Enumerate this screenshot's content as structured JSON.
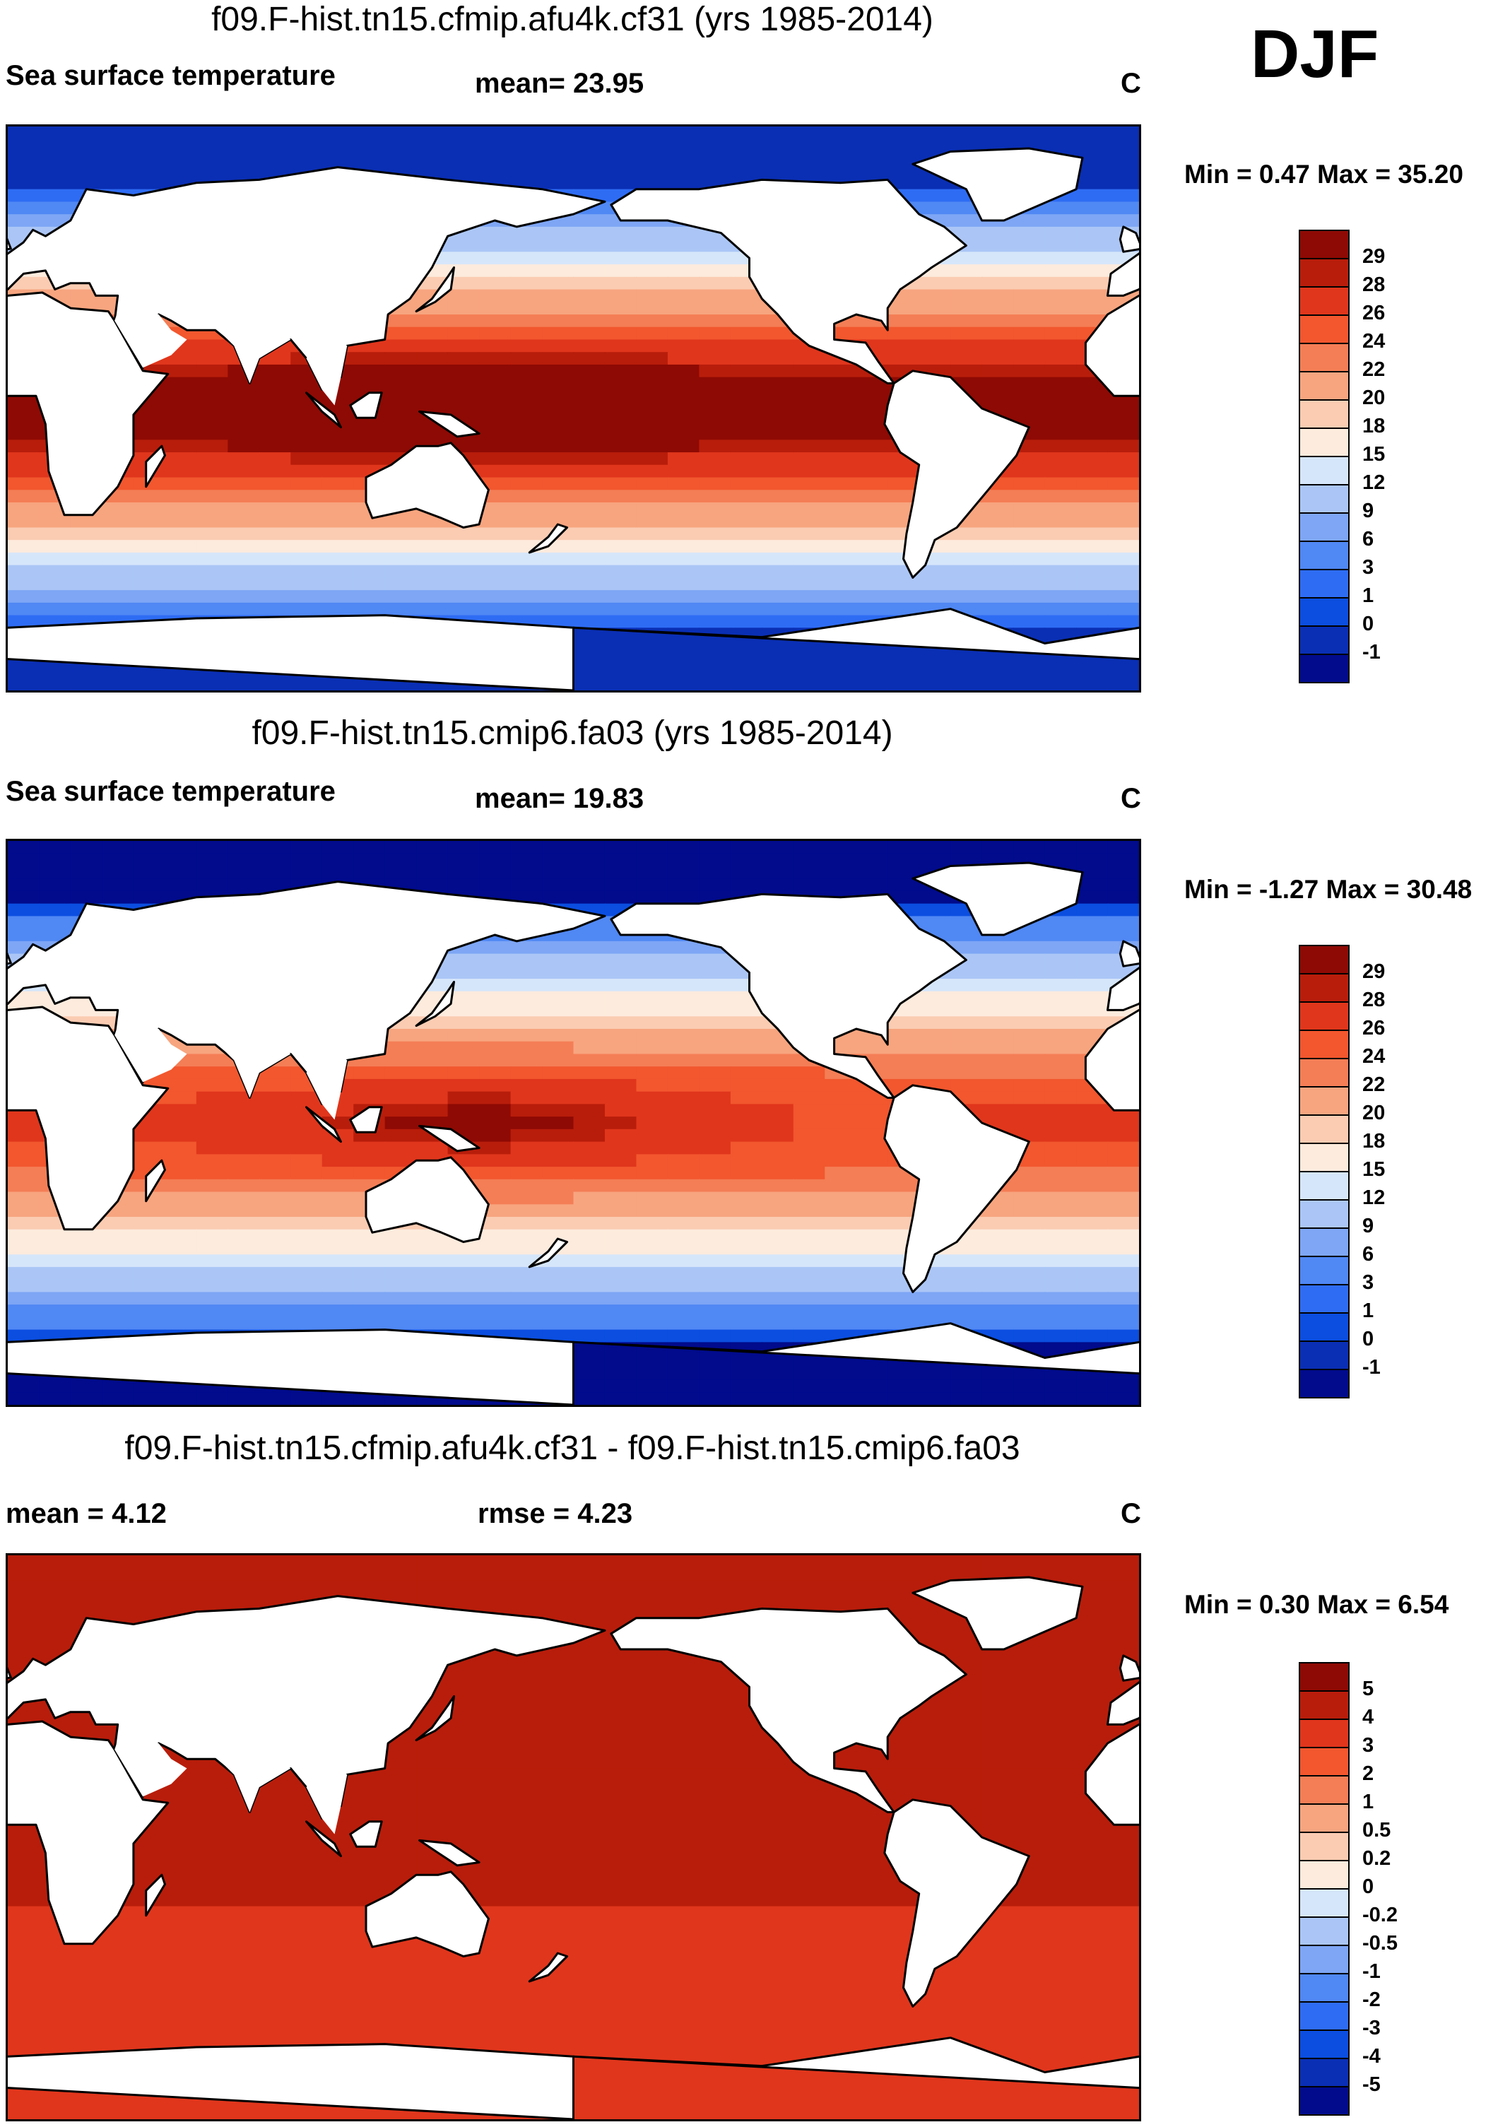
{
  "season": "DJF",
  "palettes": {
    "sst": [
      "#010b8c",
      "#0a2fb4",
      "#0b4ee0",
      "#2e6cf4",
      "#5088f4",
      "#7ea6f5",
      "#abc6f6",
      "#d6e6fa",
      "#fdebdd",
      "#fbccb2",
      "#f7a57f",
      "#f47e56",
      "#f2572e",
      "#e0361c",
      "#b81d0b",
      "#8e0a04"
    ],
    "diff": [
      "#010b8c",
      "#0a2fb4",
      "#0b4ee0",
      "#2e6cf4",
      "#5088f4",
      "#7ea6f5",
      "#abc6f6",
      "#d6e6fa",
      "#fdebdd",
      "#fbccb2",
      "#f7a57f",
      "#f47e56",
      "#f2572e",
      "#e0361c",
      "#b81d0b",
      "#8e0a04"
    ]
  },
  "panels": [
    {
      "title": "f09.F-hist.tn15.cfmip.afu4k.cf31 (yrs 1985-2014)",
      "left_label": "Sea surface temperature",
      "center_label": "mean=  23.95",
      "units": "C",
      "minmax": "Min =   0.47 Max =  35.20",
      "colorbar": {
        "palette": "sst",
        "ticks": [
          "29",
          "28",
          "26",
          "24",
          "22",
          "20",
          "18",
          "15",
          "12",
          "9",
          "6",
          "3",
          "1",
          "0",
          "-1"
        ]
      },
      "field": {
        "equator_value": 30.5,
        "north_pole_value": -1,
        "south_pole_value": -1,
        "west_pacific_boost": 2.0
      }
    },
    {
      "title": "f09.F-hist.tn15.cmip6.fa03 (yrs 1985-2014)",
      "left_label": "Sea surface temperature",
      "center_label": "mean=  19.83",
      "units": "C",
      "minmax": "Min =  -1.27 Max =  30.48",
      "colorbar": {
        "palette": "sst",
        "ticks": [
          "29",
          "28",
          "26",
          "24",
          "22",
          "20",
          "18",
          "15",
          "12",
          "9",
          "6",
          "3",
          "1",
          "0",
          "-1"
        ]
      },
      "field": {
        "equator_value": 26.5,
        "north_pole_value": -1.5,
        "south_pole_value": -1.5,
        "west_pacific_boost": 3.0
      }
    },
    {
      "title": "f09.F-hist.tn15.cfmip.afu4k.cf31 - f09.F-hist.tn15.cmip6.fa03",
      "left_label": "mean =    4.12",
      "center_label": "rmse =    4.23",
      "units": "C",
      "minmax": "Min =   0.30 Max =   6.54",
      "colorbar": {
        "palette": "diff",
        "ticks": [
          "5",
          "4",
          "3",
          "2",
          "1",
          "0.5",
          "0.2",
          "0",
          "-0.2",
          "-0.5",
          "-1",
          "-2",
          "-3",
          "-4",
          "-5"
        ]
      },
      "field": {
        "equator_value": 4.2,
        "north_pole_value": 4.6,
        "south_pole_value": 3.0,
        "west_pacific_boost": 0.0
      }
    }
  ]
}
